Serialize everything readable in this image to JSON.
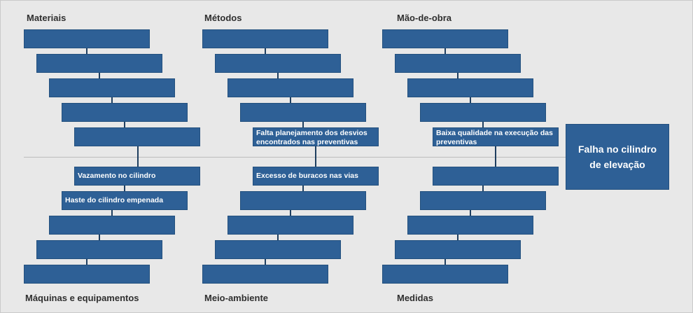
{
  "categories": {
    "materiais": "Materiais",
    "metodos": "Métodos",
    "mao_de_obra": "Mão-de-obra",
    "maquinas": "Máquinas e equipamentos",
    "meio_ambiente": "Meio-ambiente",
    "medidas": "Medidas"
  },
  "problem": "Falha no cilindro de elevação",
  "causes": {
    "metodos": "Falta planejamento dos desvios encontrados nas preventivas",
    "mao_de_obra": "Baixa qualidade na execução das preventivas",
    "maquinas_1": "Vazamento no cilindro",
    "maquinas_2": "Haste do cilindro empenada",
    "meio_ambiente": "Excesso de buracos nas vias"
  },
  "colors": {
    "box": "#2e6096",
    "background": "#e8e8e8",
    "connector": "#1f3f60"
  }
}
